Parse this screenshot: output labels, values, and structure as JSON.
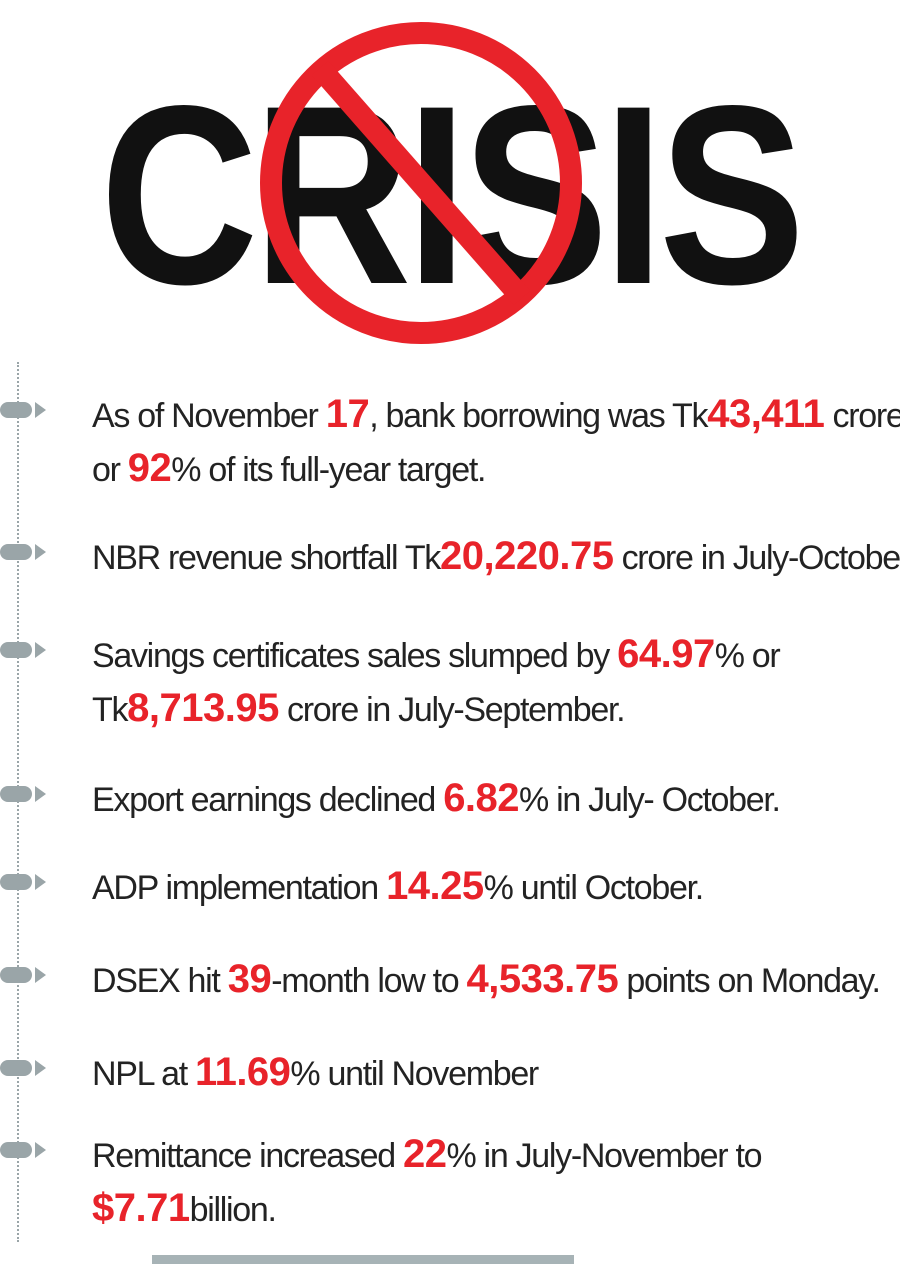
{
  "header": {
    "title": "CRISIS",
    "colors": {
      "title": "#111111",
      "no_sign": "#e8232a"
    }
  },
  "facts": [
    {
      "segments": [
        {
          "text": "As of November ",
          "hl": false
        },
        {
          "text": "17",
          "hl": true
        },
        {
          "text": ", bank borrowing was Tk",
          "hl": false
        },
        {
          "text": "43,411",
          "hl": true
        },
        {
          "text": " crore",
          "hl": false
        },
        {
          "br": true
        },
        {
          "text": "or ",
          "hl": false
        },
        {
          "text": "92",
          "hl": true
        },
        {
          "text": "% of its full-year target.",
          "hl": false
        }
      ]
    },
    {
      "segments": [
        {
          "text": "NBR revenue shortfall Tk",
          "hl": false
        },
        {
          "text": "20,220.75",
          "hl": true
        },
        {
          "text": " crore in July-October",
          "hl": false
        }
      ]
    },
    {
      "segments": [
        {
          "text": "Savings certificates sales slumped by ",
          "hl": false
        },
        {
          "text": "64.97",
          "hl": true
        },
        {
          "text": "% or",
          "hl": false
        },
        {
          "br": true
        },
        {
          "text": "Tk",
          "hl": false
        },
        {
          "text": "8,713.95",
          "hl": true
        },
        {
          "text": " crore in July-September.",
          "hl": false
        }
      ]
    },
    {
      "segments": [
        {
          "text": "Export earnings declined ",
          "hl": false
        },
        {
          "text": "6.82",
          "hl": true
        },
        {
          "text": "% in July- October.",
          "hl": false
        }
      ]
    },
    {
      "segments": [
        {
          "text": "ADP implementation ",
          "hl": false
        },
        {
          "text": "14.25",
          "hl": true
        },
        {
          "text": "% until October.",
          "hl": false
        }
      ]
    },
    {
      "segments": [
        {
          "text": "DSEX hit ",
          "hl": false
        },
        {
          "text": "39",
          "hl": true
        },
        {
          "text": "-month low to ",
          "hl": false
        },
        {
          "text": "4,533.75",
          "hl": true
        },
        {
          "text": " points on Monday.",
          "hl": false
        }
      ]
    },
    {
      "segments": [
        {
          "text": "NPL at ",
          "hl": false
        },
        {
          "text": "11.69",
          "hl": true
        },
        {
          "text": "% until November",
          "hl": false
        }
      ]
    },
    {
      "segments": [
        {
          "text": "Remittance increased ",
          "hl": false
        },
        {
          "text": "22",
          "hl": true
        },
        {
          "text": "% in July-November to",
          "hl": false
        },
        {
          "br": true
        },
        {
          "text": "$7.71",
          "hl": true
        },
        {
          "text": "billion.",
          "hl": false
        }
      ]
    }
  ]
}
